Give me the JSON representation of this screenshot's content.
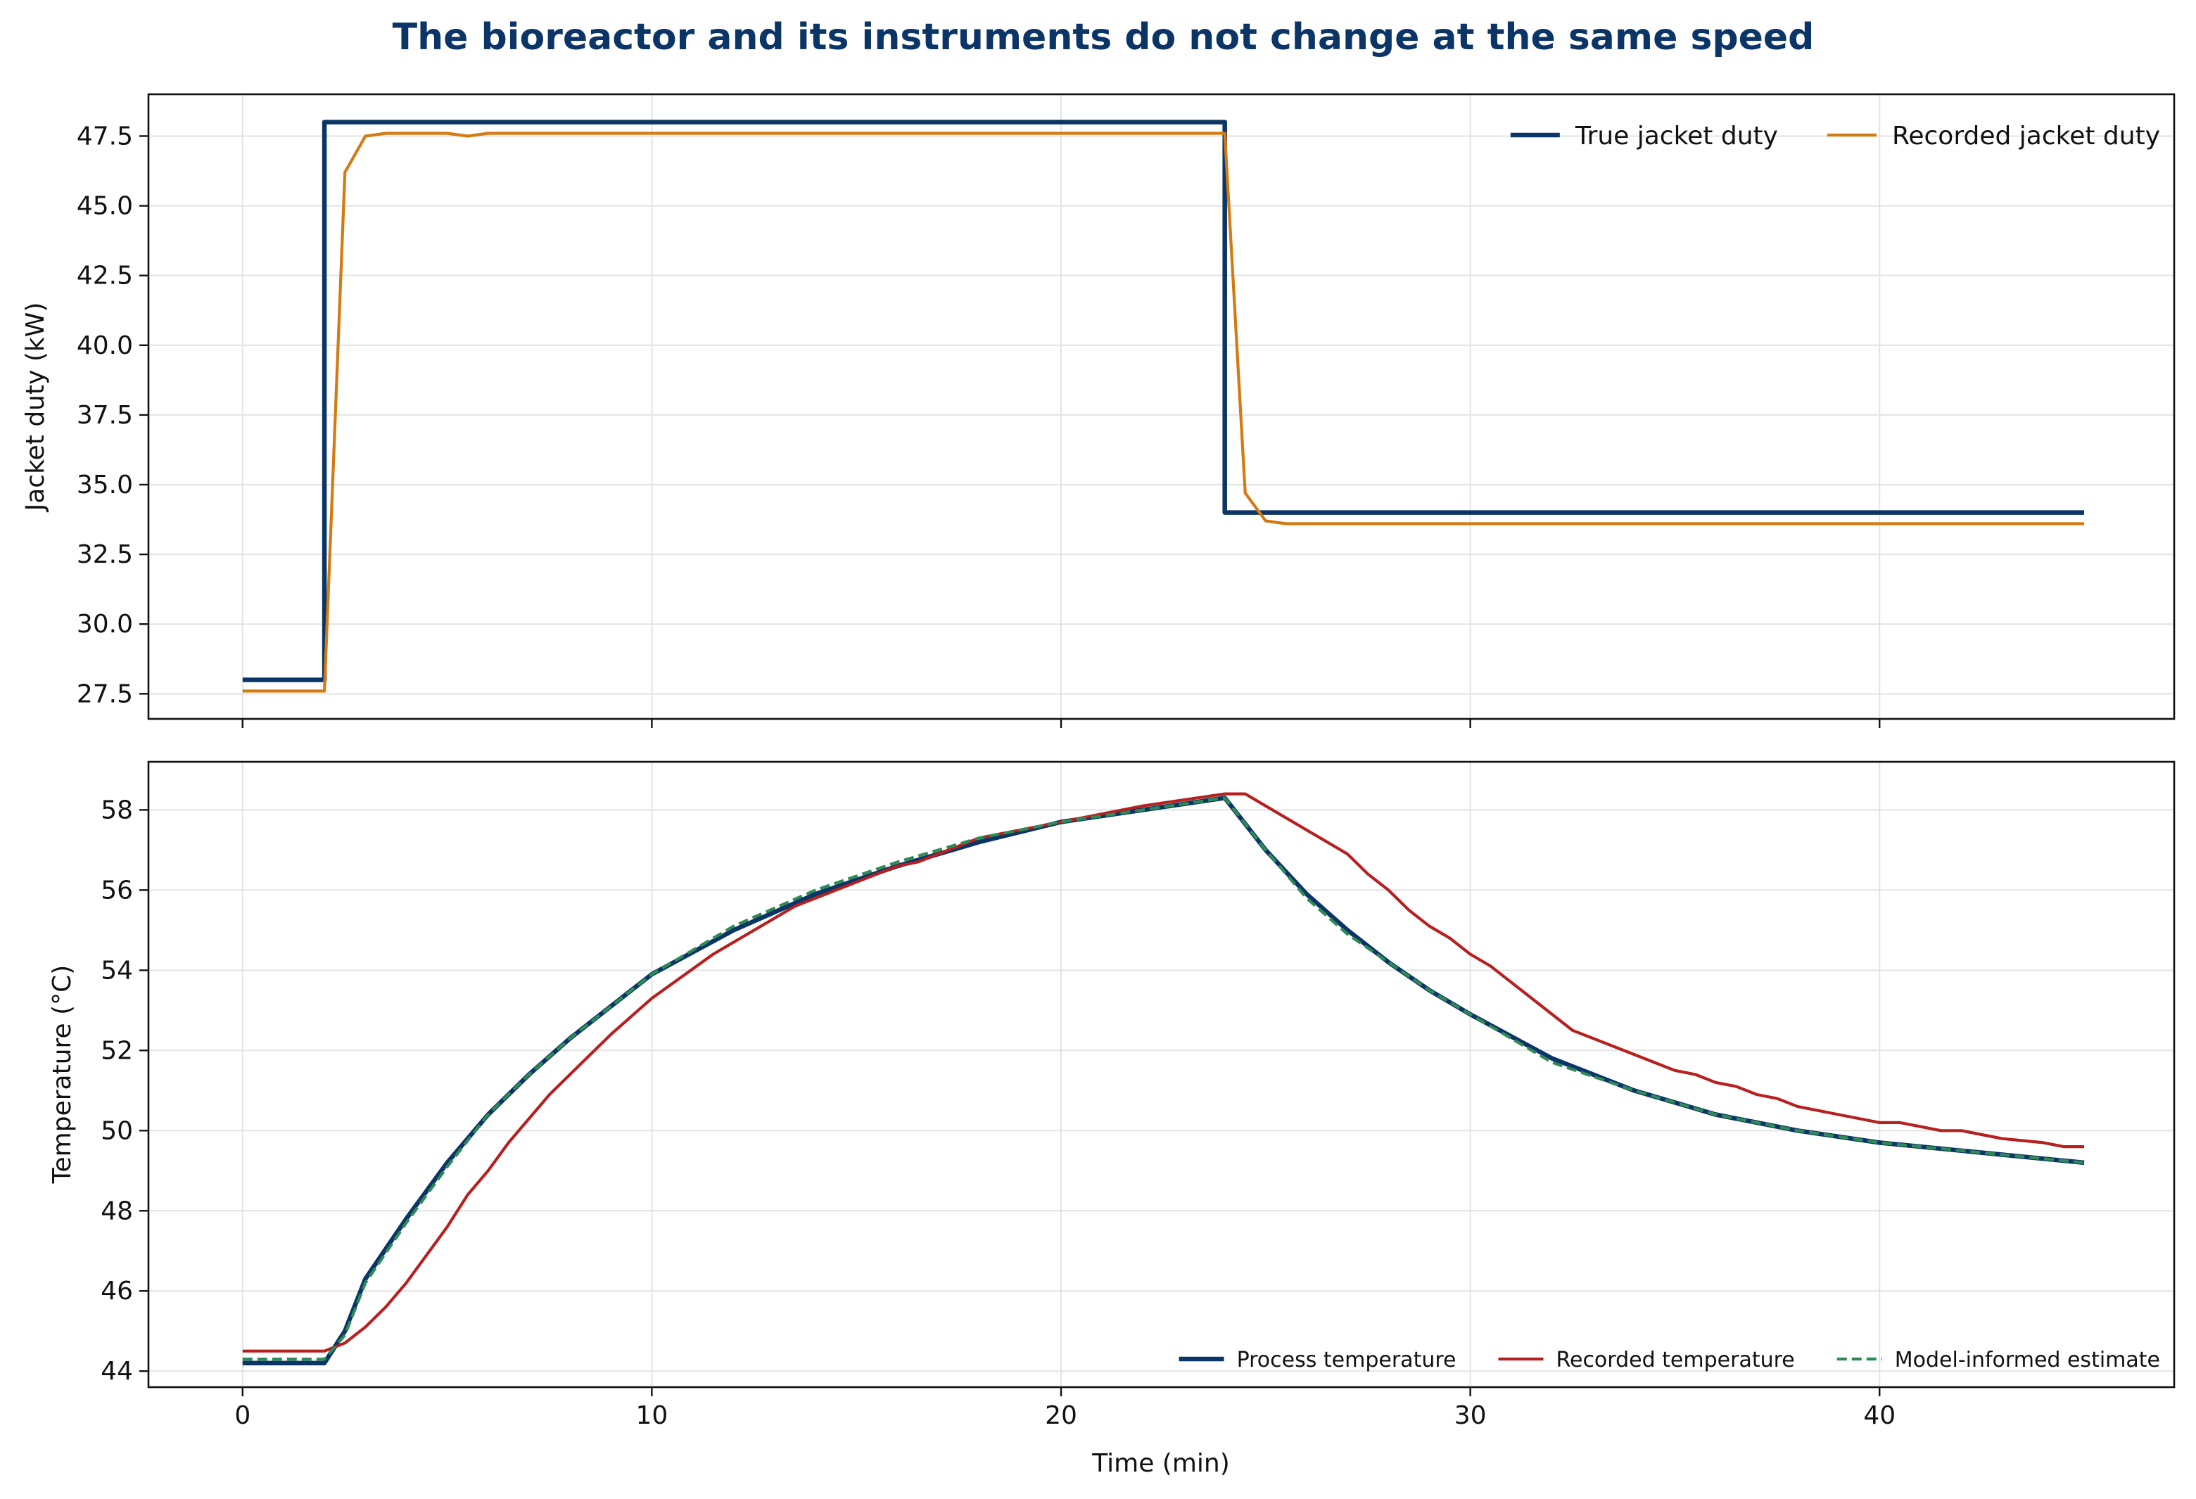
{
  "figure": {
    "title": "The bioreactor and its instruments do not change at the same speed",
    "title_color": "#0b3566"
  },
  "chart_data": [
    {
      "type": "line",
      "panel": "top",
      "title": "",
      "xlabel": "",
      "ylabel": "Jacket duty (kW)",
      "xlim": [
        -2.3,
        47.2
      ],
      "ylim": [
        26.6,
        49.0
      ],
      "xticks": [
        0,
        10,
        20,
        30,
        40
      ],
      "show_xtick_labels": false,
      "yticks": [
        27.5,
        30.0,
        32.5,
        35.0,
        37.5,
        40.0,
        42.5,
        45.0,
        47.5
      ],
      "ytick_labels": [
        "27.5",
        "30.0",
        "32.5",
        "35.0",
        "37.5",
        "40.0",
        "42.5",
        "45.0",
        "47.5"
      ],
      "grid": true,
      "legend": {
        "placement": "top-right",
        "columns": 2
      },
      "series": [
        {
          "name": "True jacket duty",
          "color": "#0b3566",
          "style": "solid",
          "weight": "thick",
          "x": [
            0,
            2,
            2,
            24,
            24,
            45
          ],
          "y": [
            28.0,
            28.0,
            48.0,
            48.0,
            34.0,
            34.0
          ]
        },
        {
          "name": "Recorded jacket duty",
          "color": "#d47a12",
          "style": "solid",
          "weight": "medium",
          "x": [
            0,
            2,
            2.5,
            3.0,
            3.5,
            4.0,
            5.0,
            5.5,
            6.0,
            24.0,
            24.5,
            25.0,
            25.5,
            45.0
          ],
          "y": [
            27.6,
            27.6,
            46.2,
            47.5,
            47.6,
            47.6,
            47.6,
            47.5,
            47.6,
            47.6,
            34.7,
            33.7,
            33.6,
            33.6
          ]
        }
      ]
    },
    {
      "type": "line",
      "panel": "bottom",
      "title": "",
      "xlabel": "Time (min)",
      "ylabel": "Temperature (°C)",
      "xlim": [
        -2.3,
        47.2
      ],
      "ylim": [
        43.6,
        59.2
      ],
      "xticks": [
        0,
        10,
        20,
        30,
        40
      ],
      "xtick_labels": [
        "0",
        "10",
        "20",
        "30",
        "40"
      ],
      "yticks": [
        44,
        46,
        48,
        50,
        52,
        54,
        56,
        58
      ],
      "ytick_labels": [
        "44",
        "46",
        "48",
        "50",
        "52",
        "54",
        "56",
        "58"
      ],
      "grid": true,
      "legend": {
        "placement": "bottom-right",
        "columns": 3
      },
      "series": [
        {
          "name": "Process temperature",
          "color": "#0b3566",
          "style": "solid",
          "weight": "thick",
          "x": [
            0,
            2,
            2.5,
            3,
            4,
            5,
            6,
            7,
            8,
            9,
            10,
            12,
            14,
            16,
            18,
            20,
            22,
            24,
            25,
            26,
            27,
            28,
            29,
            30,
            32,
            34,
            36,
            38,
            40,
            42,
            45
          ],
          "y": [
            44.2,
            44.2,
            45.0,
            46.3,
            47.8,
            49.2,
            50.4,
            51.4,
            52.3,
            53.1,
            53.9,
            55.0,
            55.9,
            56.6,
            57.2,
            57.7,
            58.0,
            58.3,
            57.0,
            55.9,
            55.0,
            54.2,
            53.5,
            52.9,
            51.8,
            51.0,
            50.4,
            50.0,
            49.7,
            49.5,
            49.2
          ]
        },
        {
          "name": "Recorded temperature",
          "color": "#b81f1f",
          "style": "solid",
          "weight": "medium",
          "x": [
            0,
            2,
            2.5,
            3,
            3.5,
            4,
            5,
            5.5,
            6,
            6.5,
            7.5,
            9,
            10,
            11.5,
            13.5,
            16,
            16.5,
            18,
            20,
            22,
            24,
            24.5,
            25,
            26,
            27,
            27.5,
            28,
            28.5,
            29,
            29.5,
            30,
            30.5,
            32.5,
            34,
            35,
            35.5,
            36,
            36.5,
            37,
            37.5,
            38,
            39,
            40,
            40.5,
            41,
            41.5,
            42,
            43,
            44,
            44.5,
            45
          ],
          "y": [
            44.5,
            44.5,
            44.7,
            45.1,
            45.6,
            46.2,
            47.6,
            48.4,
            49.0,
            49.7,
            50.9,
            52.4,
            53.3,
            54.4,
            55.6,
            56.6,
            56.7,
            57.3,
            57.7,
            58.1,
            58.4,
            58.4,
            58.1,
            57.5,
            56.9,
            56.4,
            56.0,
            55.5,
            55.1,
            54.8,
            54.4,
            54.1,
            52.5,
            51.9,
            51.5,
            51.4,
            51.2,
            51.1,
            50.9,
            50.8,
            50.6,
            50.4,
            50.2,
            50.2,
            50.1,
            50.0,
            50.0,
            49.8,
            49.7,
            49.6,
            49.6
          ]
        },
        {
          "name": "Model-informed estimate",
          "color": "#2e8b57",
          "style": "dashed",
          "weight": "medium",
          "x": [
            0,
            2,
            2.5,
            3,
            4,
            5,
            6,
            7,
            8,
            9,
            10,
            12,
            14,
            16,
            18,
            20,
            22,
            24,
            25,
            26,
            27,
            28,
            29,
            30,
            32,
            34,
            36,
            38,
            40,
            42,
            45
          ],
          "y": [
            44.3,
            44.3,
            44.9,
            46.2,
            47.7,
            49.1,
            50.4,
            51.4,
            52.3,
            53.1,
            53.9,
            55.1,
            56.0,
            56.7,
            57.3,
            57.7,
            58.0,
            58.3,
            57.0,
            55.8,
            54.9,
            54.2,
            53.5,
            52.9,
            51.7,
            51.0,
            50.4,
            50.0,
            49.7,
            49.5,
            49.2
          ]
        }
      ]
    }
  ]
}
